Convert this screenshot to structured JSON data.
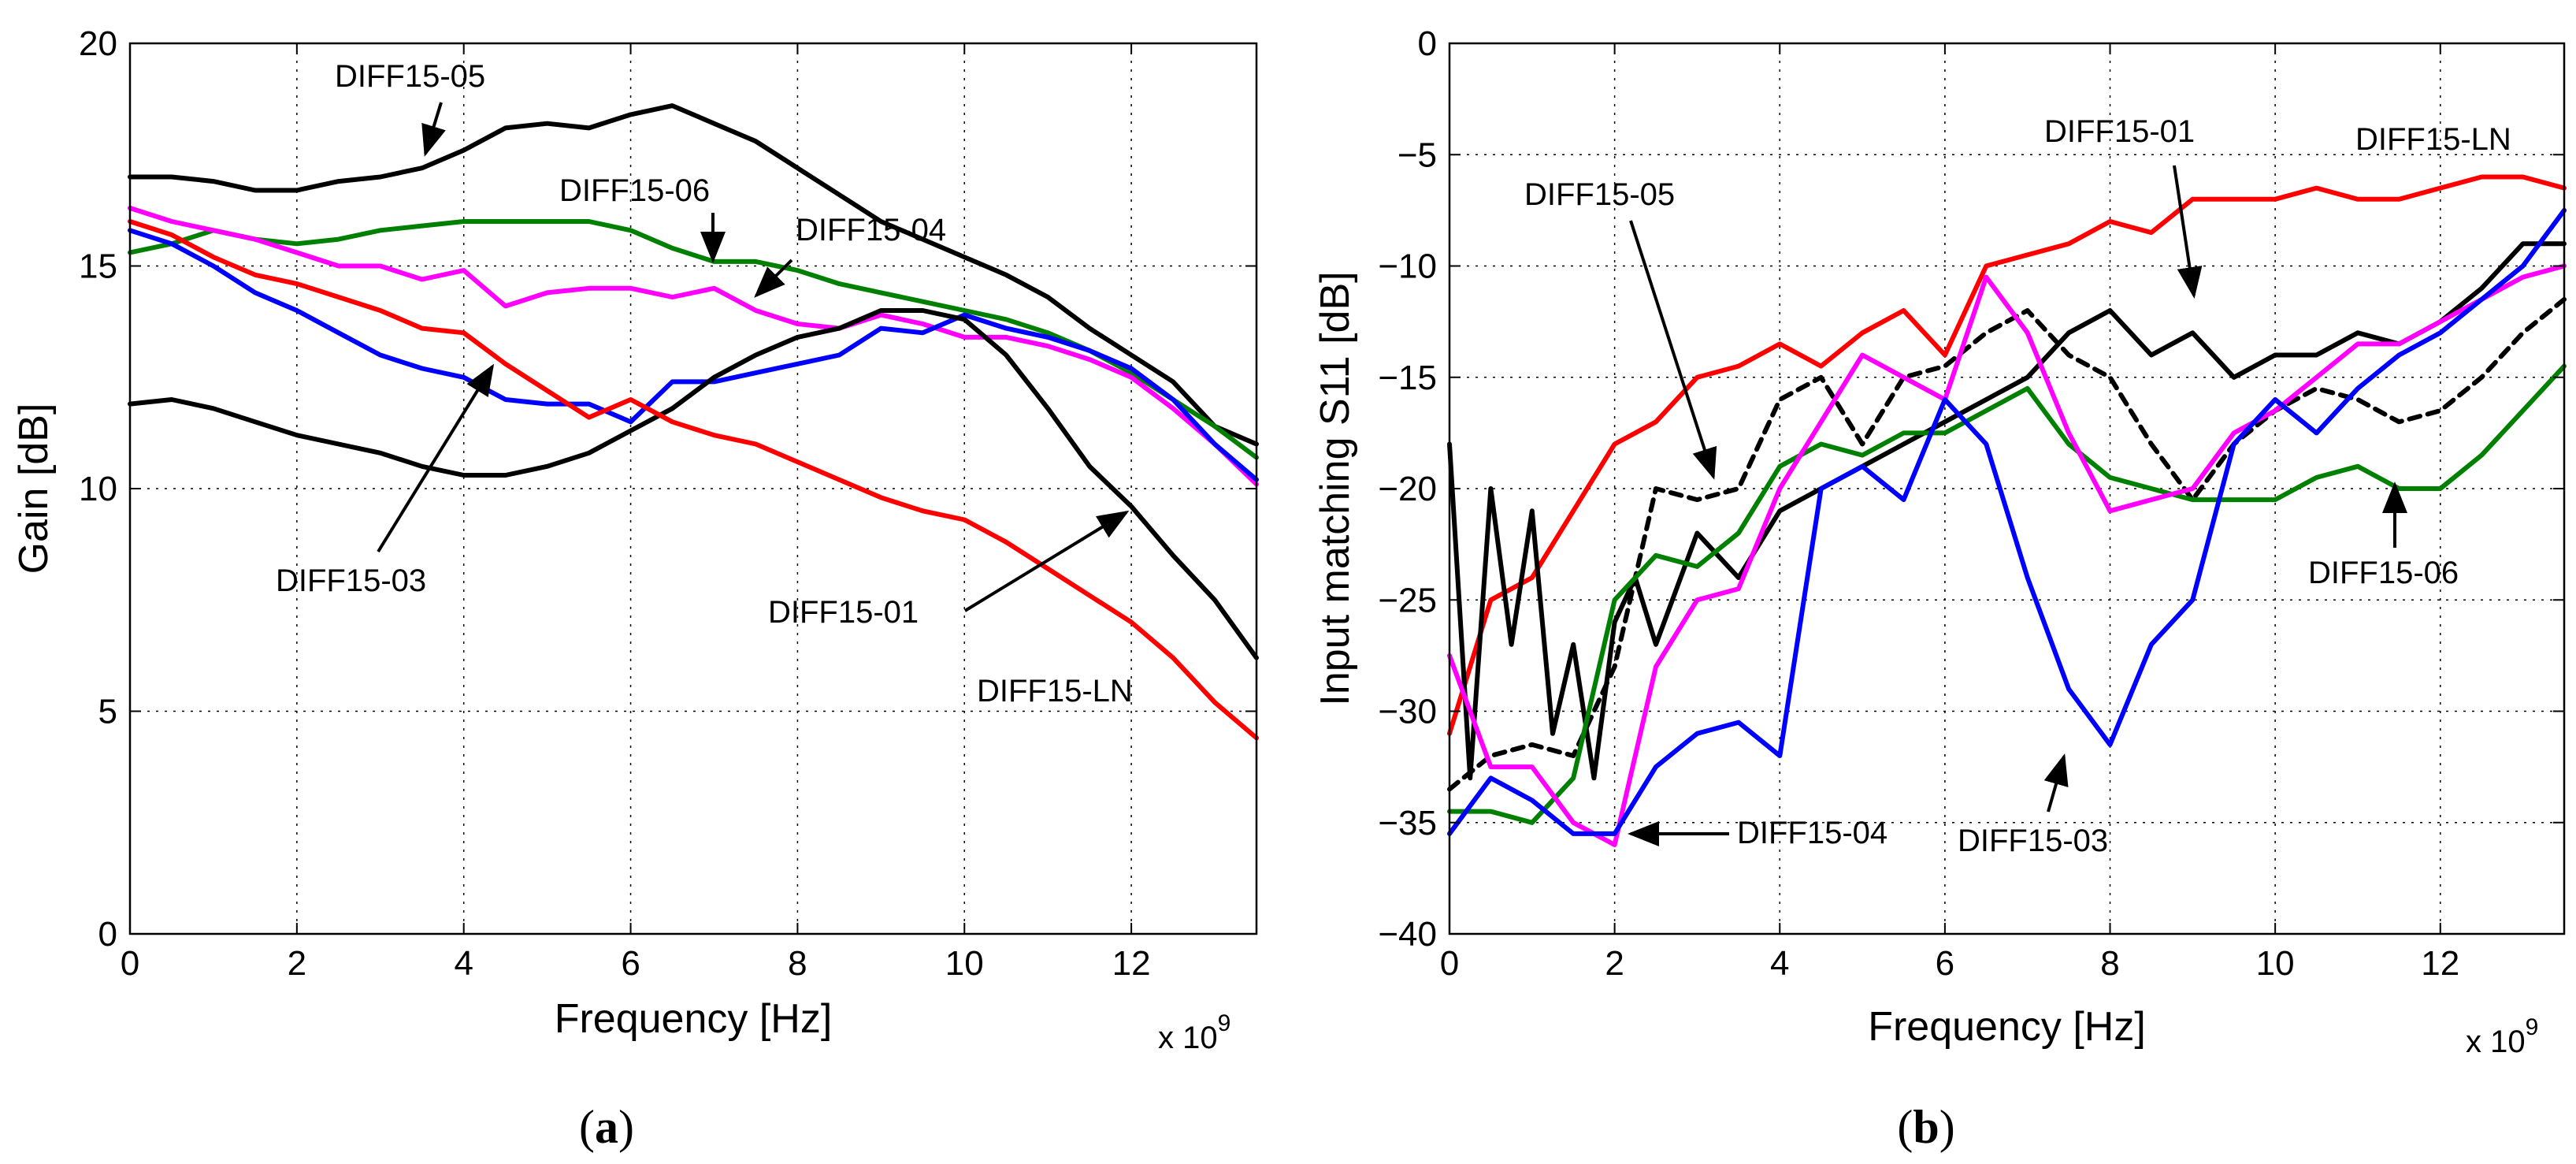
{
  "chart_data": [
    {
      "type": "line",
      "panel_label_open": "(",
      "panel_label_letter": "a",
      "panel_label_close": ")",
      "xlabel": "Frequency [Hz]",
      "ylabel": "Gain [dB]",
      "x_exponent": "x 10",
      "x_exponent_power": "9",
      "xlim": [
        0,
        13.5
      ],
      "ylim": [
        0,
        20
      ],
      "x_ticks": [
        0,
        2,
        4,
        6,
        8,
        10,
        12
      ],
      "x_tick_labels": [
        "0",
        "2",
        "4",
        "6",
        "8",
        "10",
        "12"
      ],
      "y_ticks": [
        0,
        5,
        10,
        15,
        20
      ],
      "y_tick_labels": [
        "0",
        "5",
        "10",
        "15",
        "20"
      ],
      "grid": true,
      "series": [
        {
          "name": "DIFF15-05",
          "color": "#000000",
          "dashed": false,
          "x": [
            0,
            0.5,
            1,
            1.5,
            2,
            2.5,
            3,
            3.5,
            4,
            4.5,
            5,
            5.5,
            6,
            6.5,
            7,
            7.5,
            8,
            8.5,
            9,
            9.5,
            10,
            10.5,
            11,
            11.5,
            12,
            12.5,
            13,
            13.5
          ],
          "y": [
            17.0,
            17.0,
            16.9,
            16.7,
            16.7,
            16.9,
            17.0,
            17.2,
            17.6,
            18.1,
            18.2,
            18.1,
            18.4,
            18.6,
            18.2,
            17.8,
            17.2,
            16.6,
            16.0,
            15.6,
            15.2,
            14.8,
            14.3,
            13.6,
            13.0,
            12.4,
            11.4,
            11.0
          ]
        },
        {
          "name": "DIFF15-06",
          "color": "#008000",
          "dashed": false,
          "x": [
            0,
            0.5,
            1,
            1.5,
            2,
            2.5,
            3,
            3.5,
            4,
            4.5,
            5,
            5.5,
            6,
            6.5,
            7,
            7.5,
            8,
            8.5,
            9,
            9.5,
            10,
            10.5,
            11,
            11.5,
            12,
            12.5,
            13,
            13.5
          ],
          "y": [
            15.3,
            15.5,
            15.8,
            15.6,
            15.5,
            15.6,
            15.8,
            15.9,
            16.0,
            16.0,
            16.0,
            16.0,
            15.8,
            15.4,
            15.1,
            15.1,
            14.9,
            14.6,
            14.4,
            14.2,
            14.0,
            13.8,
            13.5,
            13.1,
            12.6,
            12.0,
            11.4,
            10.7
          ]
        },
        {
          "name": "DIFF15-04",
          "color": "#ff00ff",
          "dashed": false,
          "x": [
            0,
            0.5,
            1,
            1.5,
            2,
            2.5,
            3,
            3.5,
            4,
            4.5,
            5,
            5.5,
            6,
            6.5,
            7,
            7.5,
            8,
            8.5,
            9,
            9.5,
            10,
            10.5,
            11,
            11.5,
            12,
            12.5,
            13,
            13.5
          ],
          "y": [
            16.3,
            16.0,
            15.8,
            15.6,
            15.3,
            15.0,
            15.0,
            14.7,
            14.9,
            14.1,
            14.4,
            14.5,
            14.5,
            14.3,
            14.5,
            14.0,
            13.7,
            13.6,
            13.9,
            13.7,
            13.4,
            13.4,
            13.2,
            12.9,
            12.5,
            11.8,
            11.0,
            10.1
          ]
        },
        {
          "name": "DIFF15-03",
          "color": "#0000ff",
          "dashed": false,
          "x": [
            0,
            0.5,
            1,
            1.5,
            2,
            2.5,
            3,
            3.5,
            4,
            4.5,
            5,
            5.5,
            6,
            6.5,
            7,
            7.5,
            8,
            8.5,
            9,
            9.5,
            10,
            10.5,
            11,
            11.5,
            12,
            12.5,
            13,
            13.5
          ],
          "y": [
            15.8,
            15.5,
            15.0,
            14.4,
            14.0,
            13.5,
            13.0,
            12.7,
            12.5,
            12.0,
            11.9,
            11.9,
            11.5,
            12.4,
            12.4,
            12.6,
            12.8,
            13.0,
            13.6,
            13.5,
            13.9,
            13.6,
            13.4,
            13.1,
            12.7,
            12.0,
            11.0,
            10.2
          ]
        },
        {
          "name": "DIFF15-01",
          "color": "#000000",
          "dashed": false,
          "x": [
            0,
            0.5,
            1,
            1.5,
            2,
            2.5,
            3,
            3.5,
            4,
            4.5,
            5,
            5.5,
            6,
            6.5,
            7,
            7.5,
            8,
            8.5,
            9,
            9.5,
            10,
            10.5,
            11,
            11.5,
            12,
            12.5,
            13,
            13.5
          ],
          "y": [
            11.9,
            12.0,
            11.8,
            11.5,
            11.2,
            11.0,
            10.8,
            10.5,
            10.3,
            10.3,
            10.5,
            10.8,
            11.3,
            11.8,
            12.5,
            13.0,
            13.4,
            13.6,
            14.0,
            14.0,
            13.8,
            13.0,
            11.8,
            10.5,
            9.6,
            8.5,
            7.5,
            6.2
          ]
        },
        {
          "name": "DIFF15-LN",
          "color": "#ff0000",
          "dashed": false,
          "x": [
            0,
            0.5,
            1,
            1.5,
            2,
            2.5,
            3,
            3.5,
            4,
            4.5,
            5,
            5.5,
            6,
            6.5,
            7,
            7.5,
            8,
            8.5,
            9,
            9.5,
            10,
            10.5,
            11,
            11.5,
            12,
            12.5,
            13,
            13.5
          ],
          "y": [
            16.0,
            15.7,
            15.2,
            14.8,
            14.6,
            14.3,
            14.0,
            13.6,
            13.5,
            12.8,
            12.2,
            11.6,
            12.0,
            11.5,
            11.2,
            11.0,
            10.6,
            10.2,
            9.8,
            9.5,
            9.3,
            8.8,
            8.2,
            7.6,
            7.0,
            6.2,
            5.2,
            4.4
          ]
        }
      ],
      "annotations": [
        {
          "text": "DIFF15-05",
          "target": "DIFF15-05"
        },
        {
          "text": "DIFF15-06",
          "target": "DIFF15-06"
        },
        {
          "text": "DIFF15-04",
          "target": "DIFF15-04"
        },
        {
          "text": "DIFF15-03",
          "target": "DIFF15-03"
        },
        {
          "text": "DIFF15-01",
          "target": "DIFF15-01"
        },
        {
          "text": "DIFF15-LN",
          "target": "DIFF15-LN"
        }
      ]
    },
    {
      "type": "line",
      "panel_label_open": "(",
      "panel_label_letter": "b",
      "panel_label_close": ")",
      "xlabel": "Frequency [Hz]",
      "ylabel": "Input matching S11 [dB]",
      "x_exponent": "x 10",
      "x_exponent_power": "9",
      "xlim": [
        0,
        13.5
      ],
      "ylim": [
        -40,
        0
      ],
      "x_ticks": [
        0,
        2,
        4,
        6,
        8,
        10,
        12
      ],
      "x_tick_labels": [
        "0",
        "2",
        "4",
        "6",
        "8",
        "10",
        "12"
      ],
      "y_ticks": [
        0,
        -5,
        -10,
        -15,
        -20,
        -25,
        -30,
        -35,
        -40
      ],
      "y_tick_labels": [
        "0",
        "−5",
        "−10",
        "−15",
        "−20",
        "−25",
        "−30",
        "−35",
        "−40"
      ],
      "grid": true,
      "series": [
        {
          "name": "DIFF15-LN",
          "color": "#ff0000",
          "dashed": false,
          "x": [
            0,
            0.5,
            1,
            1.5,
            2,
            2.5,
            3,
            3.5,
            4,
            4.5,
            5,
            5.5,
            6,
            6.5,
            7,
            7.5,
            8,
            8.5,
            9,
            9.5,
            10,
            10.5,
            11,
            11.5,
            12,
            12.5,
            13,
            13.5
          ],
          "y": [
            -31,
            -25,
            -24,
            -21,
            -18,
            -17,
            -15,
            -14.5,
            -13.5,
            -14.5,
            -13,
            -12,
            -14,
            -10,
            -9.5,
            -9,
            -8,
            -8.5,
            -7,
            -7,
            -7,
            -6.5,
            -7,
            -7,
            -6.5,
            -6,
            -6,
            -6.5
          ]
        },
        {
          "name": "DIFF15-05",
          "color": "#000000",
          "dashed": true,
          "x": [
            0,
            0.5,
            1,
            1.5,
            2,
            2.5,
            3,
            3.5,
            4,
            4.5,
            5,
            5.5,
            6,
            6.5,
            7,
            7.5,
            8,
            8.5,
            9,
            9.5,
            10,
            10.5,
            11,
            11.5,
            12,
            12.5,
            13,
            13.5
          ],
          "y": [
            -33.5,
            -32,
            -31.5,
            -32,
            -28,
            -20,
            -20.5,
            -20,
            -16,
            -15,
            -18,
            -15,
            -14.5,
            -13,
            -12,
            -14,
            -15,
            -18,
            -20.5,
            -18,
            -16.5,
            -15.5,
            -16,
            -17,
            -16.5,
            -15,
            -13,
            -11.5
          ]
        },
        {
          "name": "DIFF15-01",
          "color": "#000000",
          "dashed": false,
          "x": [
            0,
            0.25,
            0.5,
            0.75,
            1,
            1.25,
            1.5,
            1.75,
            2,
            2.25,
            2.5,
            3,
            3.5,
            4,
            4.5,
            5,
            5.5,
            6,
            6.5,
            7,
            7.5,
            8,
            8.5,
            9,
            9.5,
            10,
            10.5,
            11,
            11.5,
            12,
            12.5,
            13,
            13.5
          ],
          "y": [
            -18,
            -33,
            -20,
            -27,
            -21,
            -31,
            -27,
            -33,
            -26,
            -24,
            -27,
            -22,
            -24,
            -21,
            -20,
            -19,
            -18,
            -17,
            -16,
            -15,
            -13,
            -12,
            -14,
            -13,
            -15,
            -14,
            -14,
            -13,
            -13.5,
            -12.5,
            -11,
            -9,
            -9
          ]
        },
        {
          "name": "DIFF15-06",
          "color": "#008000",
          "dashed": false,
          "x": [
            0,
            0.5,
            1,
            1.5,
            2,
            2.5,
            3,
            3.5,
            4,
            4.5,
            5,
            5.5,
            6,
            6.5,
            7,
            7.5,
            8,
            8.5,
            9,
            9.5,
            10,
            10.5,
            11,
            11.5,
            12,
            12.5,
            13,
            13.5
          ],
          "y": [
            -34.5,
            -34.5,
            -35,
            -33,
            -25,
            -23,
            -23.5,
            -22,
            -19,
            -18,
            -18.5,
            -17.5,
            -17.5,
            -16.5,
            -15.5,
            -18,
            -19.5,
            -20,
            -20.5,
            -20.5,
            -20.5,
            -19.5,
            -19,
            -20,
            -20,
            -18.5,
            -16.5,
            -14.5
          ]
        },
        {
          "name": "DIFF15-04",
          "color": "#ff00ff",
          "dashed": false,
          "x": [
            0,
            0.5,
            1,
            1.5,
            2,
            2.5,
            3,
            3.5,
            4,
            4.5,
            5,
            5.5,
            6,
            6.5,
            7,
            7.5,
            8,
            8.5,
            9,
            9.5,
            10,
            10.5,
            11,
            11.5,
            12,
            12.5,
            13,
            13.5
          ],
          "y": [
            -27.5,
            -32.5,
            -32.5,
            -35,
            -36,
            -28,
            -25,
            -24.5,
            -20,
            -17,
            -14,
            -15,
            -16,
            -10.5,
            -13,
            -17.5,
            -21,
            -20.5,
            -20,
            -17.5,
            -16.5,
            -15,
            -13.5,
            -13.5,
            -12.5,
            -11.5,
            -10.5,
            -10
          ]
        },
        {
          "name": "DIFF15-03",
          "color": "#0000ff",
          "dashed": false,
          "x": [
            0,
            0.5,
            1,
            1.5,
            2,
            2.5,
            3,
            3.5,
            4,
            4.5,
            5,
            5.5,
            6,
            6.5,
            7,
            7.5,
            8,
            8.5,
            9,
            9.5,
            10,
            10.5,
            11,
            11.5,
            12,
            12.5,
            13,
            13.5
          ],
          "y": [
            -35.5,
            -33,
            -34,
            -35.5,
            -35.5,
            -32.5,
            -31,
            -30.5,
            -32,
            -20,
            -19,
            -20.5,
            -16,
            -18,
            -24,
            -29,
            -31.5,
            -27,
            -25,
            -18,
            -16,
            -17.5,
            -15.5,
            -14,
            -13,
            -11.5,
            -10,
            -7.5
          ]
        }
      ],
      "annotations": [
        {
          "text": "DIFF15-05",
          "target": "DIFF15-05"
        },
        {
          "text": "DIFF15-01",
          "target": "DIFF15-01"
        },
        {
          "text": "DIFF15-LN",
          "target": "DIFF15-LN"
        },
        {
          "text": "DIFF15-06",
          "target": "DIFF15-06"
        },
        {
          "text": "DIFF15-04",
          "target": "DIFF15-04"
        },
        {
          "text": "DIFF15-03",
          "target": "DIFF15-03"
        }
      ]
    }
  ]
}
